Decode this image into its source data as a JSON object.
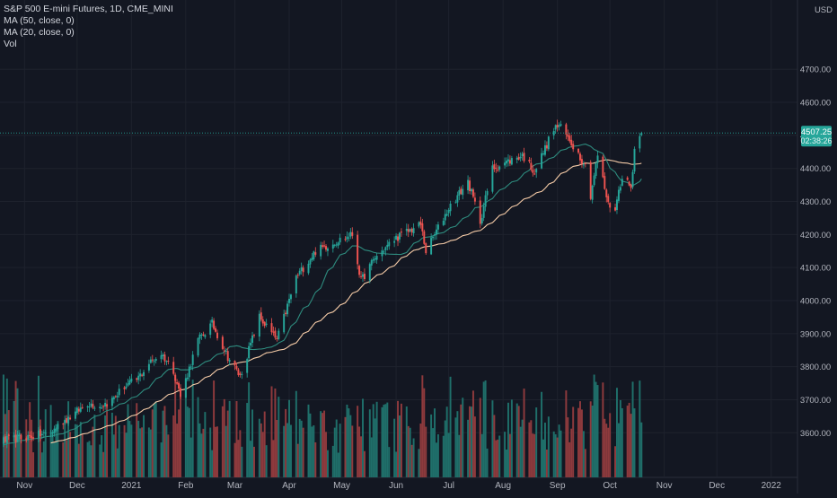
{
  "legend": {
    "symbol": "S&P 500 E-mini Futures, 1D, CME_MINI",
    "ma50": "MA (50, close, 0)",
    "ma20": "MA (20, close, 0)",
    "volume": "Vol"
  },
  "currency": "USD",
  "price_label": {
    "value": "4507.25",
    "countdown": "02:38:26"
  },
  "colors": {
    "background": "#131722",
    "up": "#26a69a",
    "down": "#ef5350",
    "up_volume": "#1f6f6a",
    "down_volume": "#8e3a3d",
    "ma50": "#f5cba7",
    "ma20": "#2e8b7e",
    "price_line": "#26a69a",
    "axis_text": "#b2b5be",
    "grid": "#1e222d"
  },
  "chart_data": {
    "type": "candlestick",
    "series_visible": [
      "price",
      "MA 50",
      "MA 20",
      "Volume"
    ],
    "y_axis": {
      "ticks": [
        3600,
        3700,
        3800,
        3900,
        4000,
        4100,
        4200,
        4300,
        4400,
        4500,
        4600,
        4700
      ],
      "tick_labels": [
        "3600.00",
        "3700.00",
        "3800.00",
        "3900.00",
        "4000.00",
        "4100.00",
        "4200.00",
        "4300.00",
        "4400.00",
        "4500.00",
        "4600.00",
        "4700.00"
      ],
      "range": [
        3465,
        4850
      ],
      "side": "right"
    },
    "x_axis": {
      "labels": [
        "Nov",
        "Dec",
        "2021",
        "Feb",
        "Mar",
        "Apr",
        "May",
        "Jun",
        "Jul",
        "Aug",
        "Sep",
        "Oct",
        "Nov",
        "Dec",
        "2022"
      ]
    },
    "anchors": [
      {
        "date": "2020-11-16",
        "close": 3600
      },
      {
        "date": "2020-11-23",
        "close": 3635
      },
      {
        "date": "2020-11-30",
        "close": 3660
      },
      {
        "date": "2020-12-07",
        "close": 3690
      },
      {
        "date": "2020-12-14",
        "close": 3680
      },
      {
        "date": "2020-12-21",
        "close": 3700
      },
      {
        "date": "2020-12-28",
        "close": 3740
      },
      {
        "date": "2021-01-04",
        "close": 3760
      },
      {
        "date": "2021-01-11",
        "close": 3810
      },
      {
        "date": "2021-01-18",
        "close": 3840
      },
      {
        "date": "2021-01-25",
        "close": 3790
      },
      {
        "date": "2021-01-29",
        "close": 3710
      },
      {
        "date": "2021-02-08",
        "close": 3880
      },
      {
        "date": "2021-02-16",
        "close": 3930
      },
      {
        "date": "2021-02-25",
        "close": 3830
      },
      {
        "date": "2021-03-04",
        "close": 3770
      },
      {
        "date": "2021-03-15",
        "close": 3950
      },
      {
        "date": "2021-03-25",
        "close": 3880
      },
      {
        "date": "2021-04-05",
        "close": 4070
      },
      {
        "date": "2021-04-16",
        "close": 4150
      },
      {
        "date": "2021-04-28",
        "close": 4180
      },
      {
        "date": "2021-05-07",
        "close": 4200
      },
      {
        "date": "2021-05-12",
        "close": 4060
      },
      {
        "date": "2021-05-20",
        "close": 4130
      },
      {
        "date": "2021-06-01",
        "close": 4190
      },
      {
        "date": "2021-06-15",
        "close": 4230
      },
      {
        "date": "2021-06-18",
        "close": 4150
      },
      {
        "date": "2021-07-01",
        "close": 4280
      },
      {
        "date": "2021-07-12",
        "close": 4360
      },
      {
        "date": "2021-07-19",
        "close": 4240
      },
      {
        "date": "2021-07-26",
        "close": 4400
      },
      {
        "date": "2021-08-12",
        "close": 4440
      },
      {
        "date": "2021-08-19",
        "close": 4390
      },
      {
        "date": "2021-08-30",
        "close": 4520
      },
      {
        "date": "2021-09-02",
        "close": 4530
      },
      {
        "date": "2021-09-10",
        "close": 4470
      },
      {
        "date": "2021-09-17",
        "close": 4410
      },
      {
        "date": "2021-09-20",
        "close": 4320
      },
      {
        "date": "2021-09-24",
        "close": 4440
      },
      {
        "date": "2021-09-30",
        "close": 4290
      },
      {
        "date": "2021-10-04",
        "close": 4280
      },
      {
        "date": "2021-10-08",
        "close": 4380
      },
      {
        "date": "2021-10-13",
        "close": 4340
      },
      {
        "date": "2021-10-15",
        "close": 4460
      },
      {
        "date": "2021-10-19",
        "close": 4507.25
      }
    ],
    "last_price": 4507.25
  }
}
